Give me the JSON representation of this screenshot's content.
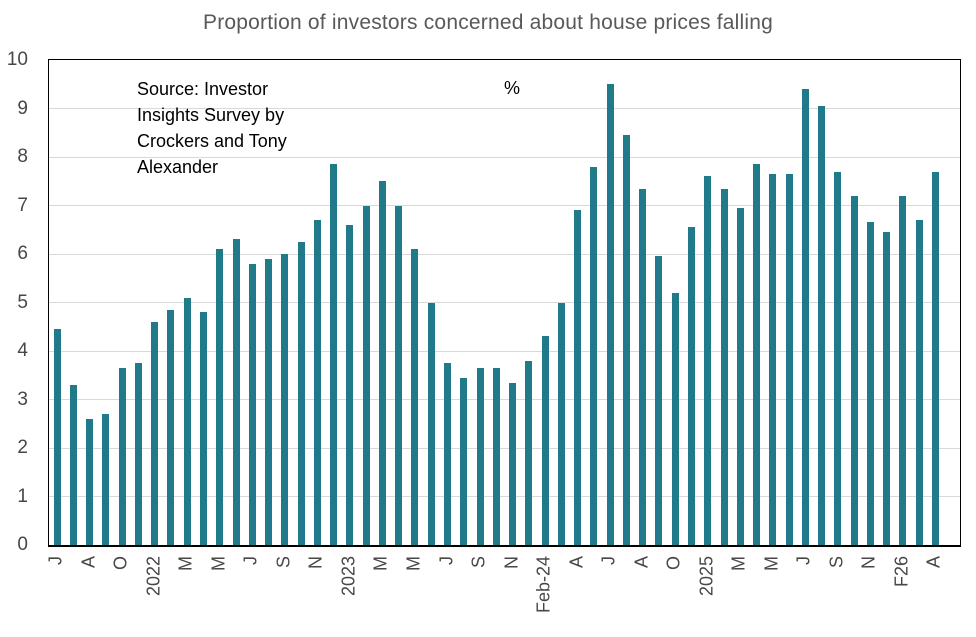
{
  "chart_data": {
    "type": "bar",
    "title": "Proportion of investors concerned about house prices falling",
    "source_note": "Source: Investor\nInsights Survey by\nCrockers and Tony\nAlexander",
    "ylabel": "%",
    "bar_color": "#217a8a",
    "grid_color": "#d9d9d9",
    "ylim": [
      0,
      10
    ],
    "yticks": [
      0,
      1,
      2,
      3,
      4,
      5,
      6,
      7,
      8,
      9,
      10
    ],
    "grid": true,
    "legend": "none",
    "x_tick_rotation": -90,
    "categories": [
      "J",
      "",
      "A",
      "",
      "O",
      "",
      "2022",
      "",
      "M",
      "",
      "M",
      "",
      "J",
      "",
      "S",
      "",
      "N",
      "",
      "2023",
      "",
      "M",
      "",
      "M",
      "",
      "J",
      "",
      "S",
      "",
      "N",
      "",
      "Feb-24",
      "",
      "A",
      "",
      "J",
      "",
      "A",
      "",
      "O",
      "",
      "2025",
      "",
      "M",
      "",
      "M",
      "",
      "J",
      "",
      "S",
      "",
      "N",
      "",
      "F26",
      "",
      "A",
      ""
    ],
    "values": [
      4.45,
      3.3,
      2.6,
      2.7,
      3.65,
      3.75,
      4.6,
      4.85,
      5.1,
      4.8,
      6.1,
      6.3,
      5.8,
      5.9,
      6.0,
      6.25,
      6.7,
      7.85,
      6.6,
      7.0,
      7.5,
      7.0,
      6.1,
      5.0,
      3.75,
      3.45,
      3.65,
      3.65,
      3.35,
      3.8,
      4.3,
      5.0,
      6.9,
      7.8,
      9.5,
      8.45,
      7.35,
      5.95,
      5.2,
      6.55,
      7.6,
      7.35,
      6.95,
      7.85,
      7.65,
      7.65,
      9.4,
      9.05,
      7.7,
      7.2,
      6.65,
      6.45,
      7.2,
      6.7,
      7.7,
      null
    ]
  }
}
